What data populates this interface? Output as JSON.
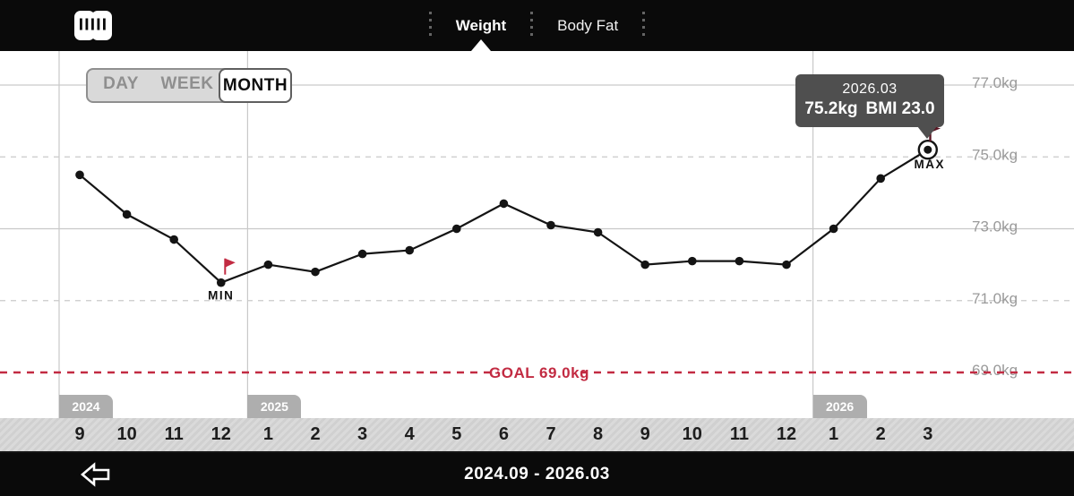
{
  "header": {
    "tabs": [
      {
        "label": "Weight",
        "active": true
      },
      {
        "label": "Body Fat",
        "active": false
      }
    ]
  },
  "range_selector": {
    "options": [
      "DAY",
      "WEEK",
      "MONTH"
    ],
    "selected": "MONTH"
  },
  "chart_data": {
    "type": "line",
    "title": "",
    "unit": "kg",
    "x": [
      "2024.09",
      "2024.10",
      "2024.11",
      "2024.12",
      "2025.01",
      "2025.02",
      "2025.03",
      "2025.04",
      "2025.05",
      "2025.06",
      "2025.07",
      "2025.08",
      "2025.09",
      "2025.10",
      "2025.11",
      "2025.12",
      "2026.01",
      "2026.02",
      "2026.03"
    ],
    "month_labels": [
      "9",
      "10",
      "11",
      "12",
      "1",
      "2",
      "3",
      "4",
      "5",
      "6",
      "7",
      "8",
      "9",
      "10",
      "11",
      "12",
      "1",
      "2",
      "3"
    ],
    "year_markers": [
      {
        "label": "2024",
        "index": 0
      },
      {
        "label": "2025",
        "index": 4
      },
      {
        "label": "2026",
        "index": 16
      }
    ],
    "series": [
      {
        "name": "Weight",
        "values": [
          74.5,
          73.4,
          72.7,
          71.5,
          72.0,
          71.8,
          72.3,
          72.4,
          73.0,
          73.7,
          73.1,
          72.9,
          72.0,
          72.1,
          72.1,
          72.0,
          73.0,
          74.4,
          75.2
        ]
      }
    ],
    "y_ticks": [
      {
        "label": "77.0kg",
        "value": 77.0,
        "style": "solid"
      },
      {
        "label": "75.0kg",
        "value": 75.0,
        "style": "dashed"
      },
      {
        "label": "73.0kg",
        "value": 73.0,
        "style": "solid"
      },
      {
        "label": "71.0kg",
        "value": 71.0,
        "style": "dashed"
      },
      {
        "label": "69.0kg",
        "value": 69.0,
        "style": "goal"
      }
    ],
    "ylim": [
      68.0,
      77.5
    ],
    "goal": {
      "value": 69.0,
      "label": "GOAL 69.0kg"
    },
    "min": {
      "index": 3,
      "x": "2024.12",
      "value": 71.5,
      "label": "MIN"
    },
    "max": {
      "index": 18,
      "x": "2026.03",
      "value": 75.2,
      "label": "MAX"
    },
    "tooltip": {
      "title": "2026.03",
      "weight": "75.2kg",
      "bmi": "BMI 23.0"
    },
    "legend": false
  },
  "footer": {
    "title": "2024.09 - 2026.03"
  },
  "colors": {
    "topbar_bg": "#0a0a0a",
    "line": "#141414",
    "grid": "#c9c9c9",
    "axis_label": "#9a9a9a",
    "accent_red": "#c22b42",
    "goal_red": "#c22b42",
    "max_flag": "#5a1523",
    "tooltip_bg": "#4f4f4f",
    "year_badge_bg": "#aeaeae"
  }
}
